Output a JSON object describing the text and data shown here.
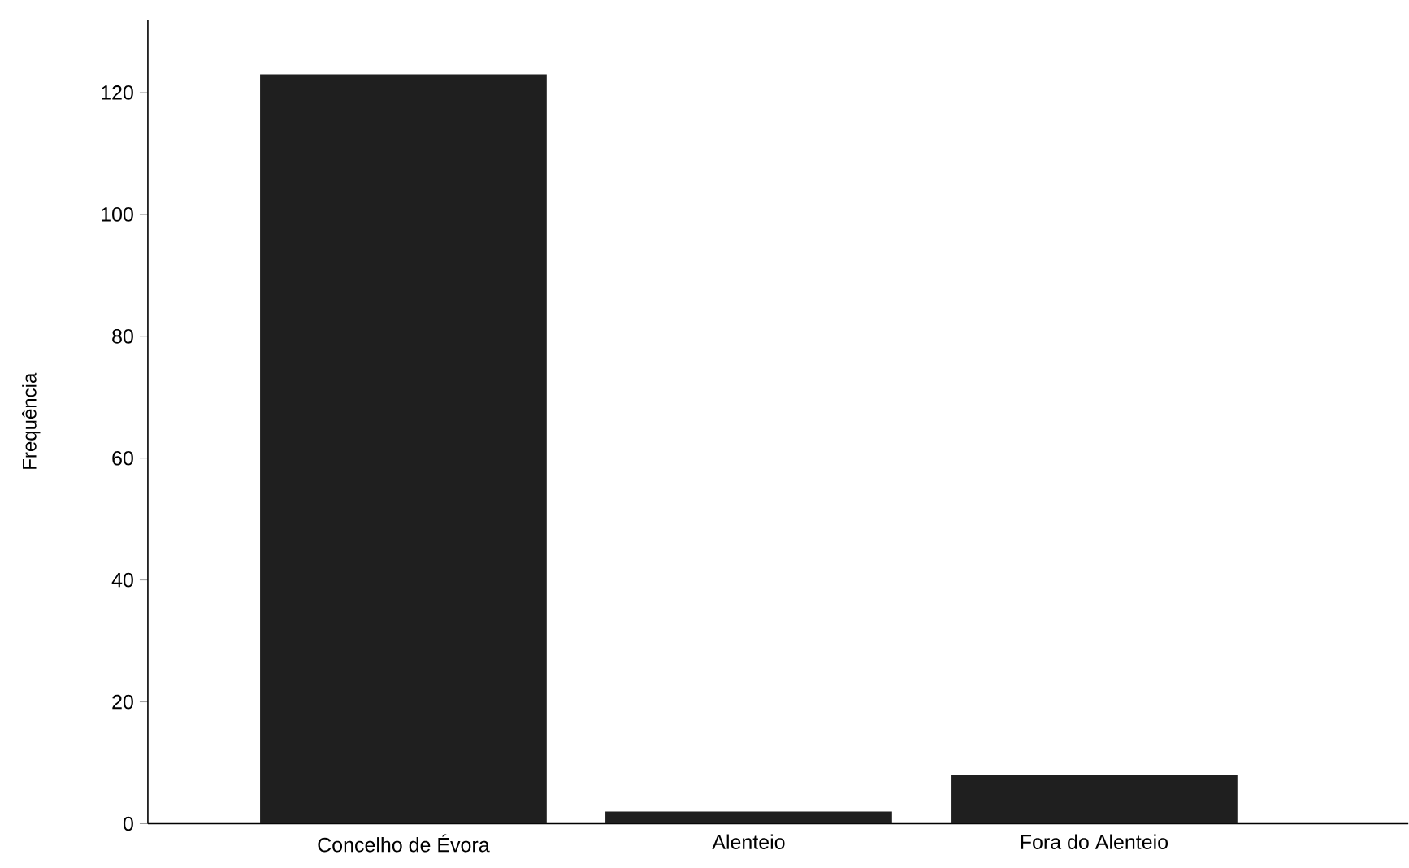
{
  "chart_data": {
    "type": "bar",
    "ylabel": "Frequência",
    "categories": [
      "Concelho de Évora",
      "Alenteio",
      "Fora do Alenteio"
    ],
    "values": [
      123,
      2,
      8
    ],
    "color": "#1f1f1f",
    "ylim": [
      0,
      132
    ],
    "yticks": [
      0,
      20,
      40,
      60,
      80,
      100,
      120
    ],
    "grid": false
  }
}
